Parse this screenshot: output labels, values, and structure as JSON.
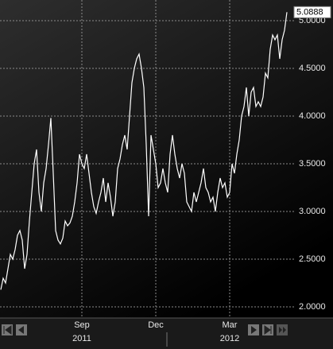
{
  "chart_data": {
    "type": "line",
    "categories": [
      null,
      null,
      null,
      null,
      null,
      null,
      null,
      null,
      null,
      null,
      null,
      null,
      null,
      null,
      null,
      null,
      null,
      null,
      null,
      null,
      null,
      null,
      null,
      null,
      null,
      null,
      null,
      null,
      null,
      null,
      null,
      null,
      null,
      null,
      "Sep",
      null,
      null,
      null,
      null,
      null,
      null,
      null,
      null,
      null,
      null,
      null,
      null,
      null,
      null,
      null,
      null,
      null,
      null,
      null,
      null,
      null,
      null,
      null,
      null,
      null,
      null,
      null,
      null,
      null,
      null,
      "Dec",
      null,
      null,
      null,
      null,
      null,
      null,
      null,
      null,
      null,
      null,
      null,
      null,
      null,
      null,
      null,
      null,
      null,
      null,
      null,
      null,
      null,
      null,
      null,
      null,
      null,
      null,
      null,
      null,
      null,
      null,
      "Mar",
      null,
      null,
      null,
      null,
      null,
      null,
      null,
      null,
      null,
      null,
      null,
      null,
      null,
      null,
      null,
      null,
      null,
      null,
      null,
      null,
      null,
      null,
      null,
      null
    ],
    "year_labels": [
      "2011",
      "2012"
    ],
    "values": [
      2.18,
      2.3,
      2.25,
      2.4,
      2.55,
      2.5,
      2.6,
      2.75,
      2.8,
      2.7,
      2.4,
      2.55,
      2.9,
      3.2,
      3.5,
      3.65,
      3.2,
      3.0,
      3.3,
      3.45,
      3.7,
      3.98,
      3.4,
      2.8,
      2.7,
      2.66,
      2.72,
      2.9,
      2.85,
      2.88,
      2.95,
      3.1,
      3.3,
      3.6,
      3.5,
      3.45,
      3.6,
      3.4,
      3.2,
      3.05,
      2.98,
      3.1,
      3.2,
      3.35,
      3.1,
      3.3,
      3.15,
      2.95,
      3.1,
      3.45,
      3.55,
      3.7,
      3.8,
      3.65,
      4.0,
      4.35,
      4.5,
      4.6,
      4.65,
      4.5,
      4.3,
      3.7,
      2.95,
      3.8,
      3.65,
      3.5,
      3.25,
      3.3,
      3.45,
      3.3,
      3.2,
      3.6,
      3.8,
      3.6,
      3.45,
      3.35,
      3.5,
      3.4,
      3.1,
      3.05,
      3.0,
      3.2,
      3.1,
      3.2,
      3.3,
      3.45,
      3.25,
      3.2,
      3.1,
      3.15,
      3.0,
      3.2,
      3.35,
      3.25,
      3.3,
      3.15,
      3.2,
      3.5,
      3.4,
      3.6,
      3.75,
      4.0,
      4.1,
      4.3,
      4.0,
      4.25,
      4.3,
      4.1,
      4.15,
      4.1,
      4.2,
      4.45,
      4.4,
      4.7,
      4.85,
      4.8,
      4.85,
      4.6,
      4.8,
      4.9,
      5.0888
    ],
    "color": "#ffffff",
    "ylim": [
      1.9,
      5.2167
    ],
    "yticks": [
      {
        "value": 2,
        "label": "2.0000"
      },
      {
        "value": 2.5,
        "label": "2.5000"
      },
      {
        "value": 3,
        "label": "3.0000"
      },
      {
        "value": 3.5,
        "label": "3.5000"
      },
      {
        "value": 4,
        "label": "4.0000"
      },
      {
        "value": 4.5,
        "label": "4.5000"
      },
      {
        "value": 5,
        "label": "5.0000"
      }
    ],
    "grid": true
  }
}
